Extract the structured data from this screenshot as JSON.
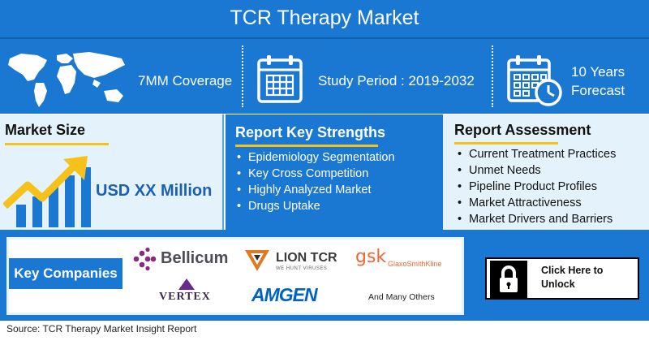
{
  "header": {
    "title": "TCR Therapy Market"
  },
  "stats": {
    "coverage": "7MM Coverage",
    "study_period": "Study Period : 2019-2032",
    "forecast_line1": "10 Years",
    "forecast_line2": "Forecast"
  },
  "market_size": {
    "title": "Market Size",
    "value": "USD XX Million"
  },
  "key_strengths": {
    "title": "Report Key Strengths",
    "items": [
      "Epidemiology Segmentation",
      "Key Cross Competition",
      "Highly Analyzed Market",
      "Drugs Uptake"
    ]
  },
  "assessment": {
    "title": "Report Assessment",
    "items": [
      "Current Treatment Practices",
      "Unmet Needs",
      "Pipeline Product Profiles",
      "Market Attractiveness",
      "Market Drivers and Barriers"
    ]
  },
  "companies": {
    "label": "Key Companies",
    "logos": {
      "bellicum": "Bellicum",
      "lion": "LION TCR",
      "lion_sub": "WE HUNT VIRUSES",
      "gsk": "gsk",
      "gsk_full": "GlaxoSmithKline",
      "vertex": "VERTEX",
      "amgen": "AMGEN"
    },
    "others": "And Many Others"
  },
  "unlock": {
    "line1": "Click Here to",
    "line2": "Unlock"
  },
  "source": "Source: TCR Therapy Market Insight Report",
  "colors": {
    "brand_blue": "#1a78d2",
    "light_panel": "#e3f2fb",
    "accent_yellow": "#f6c21a",
    "bellicum_purple": "#8a2a7e",
    "lion_orange": "#e07a22",
    "gsk_orange": "#f36633",
    "amgen_blue": "#0063c3"
  },
  "icons": [
    "world-map-icon",
    "calendar-icon",
    "calendar-clock-icon",
    "growth-chart-icon",
    "lock-icon"
  ]
}
